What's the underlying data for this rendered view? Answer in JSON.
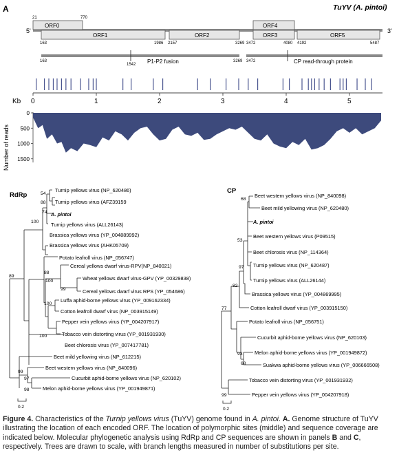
{
  "panel_a": {
    "label": "A",
    "title": "TuYV (A. pintoi)",
    "end5": "5'",
    "end3": "3'",
    "orfs": [
      {
        "name": "ORF0",
        "start": "21",
        "end": "770"
      },
      {
        "name": "ORF1",
        "start": "163",
        "end": "1986"
      },
      {
        "name": "ORF2",
        "start": "2157",
        "end": "3269"
      },
      {
        "name": "ORF4",
        "start": "",
        "end": ""
      },
      {
        "name": "ORF3",
        "start": "3472",
        "end": "4080"
      },
      {
        "name": "ORF5",
        "start": "4192",
        "end": "5487"
      }
    ],
    "fusions": [
      {
        "label": "P1-P2 fusion",
        "start": "163",
        "mid": "1542",
        "end": "3269"
      },
      {
        "label": "CP read-through protein",
        "start": "3472",
        "mid": "",
        "end": ""
      }
    ],
    "kb_label": "Kb",
    "kb_ticks": [
      "0",
      "1",
      "2",
      "3",
      "4",
      "5"
    ],
    "polymorphic_sites_kb": [
      0.05,
      0.18,
      0.25,
      0.32,
      0.38,
      0.45,
      0.52,
      0.6,
      0.75,
      0.88,
      0.95,
      1.0,
      1.42,
      1.55,
      1.9,
      2.05,
      2.6,
      2.8,
      3.05,
      3.25,
      3.4,
      3.55,
      3.95,
      4.05,
      4.25,
      4.35,
      4.4,
      4.45,
      4.52,
      4.6,
      4.7,
      4.85,
      4.9,
      4.95,
      5.12,
      5.25,
      5.35
    ],
    "coverage_ylabel": "Number of reads",
    "coverage_ticks": [
      "0",
      "500",
      "1000",
      "1500"
    ],
    "coverage_depth": [
      [
        0,
        150
      ],
      [
        0.08,
        500
      ],
      [
        0.15,
        400
      ],
      [
        0.22,
        850
      ],
      [
        0.3,
        700
      ],
      [
        0.38,
        1000
      ],
      [
        0.45,
        950
      ],
      [
        0.52,
        1300
      ],
      [
        0.6,
        1150
      ],
      [
        0.7,
        1250
      ],
      [
        0.8,
        1000
      ],
      [
        0.9,
        1050
      ],
      [
        1.0,
        1120
      ],
      [
        1.1,
        800
      ],
      [
        1.2,
        900
      ],
      [
        1.3,
        600
      ],
      [
        1.4,
        700
      ],
      [
        1.5,
        900
      ],
      [
        1.6,
        650
      ],
      [
        1.7,
        500
      ],
      [
        1.8,
        450
      ],
      [
        1.9,
        700
      ],
      [
        2.0,
        900
      ],
      [
        2.1,
        850
      ],
      [
        2.2,
        550
      ],
      [
        2.3,
        450
      ],
      [
        2.4,
        700
      ],
      [
        2.5,
        750
      ],
      [
        2.6,
        650
      ],
      [
        2.7,
        880
      ],
      [
        2.8,
        850
      ],
      [
        2.9,
        700
      ],
      [
        3.0,
        600
      ],
      [
        3.1,
        500
      ],
      [
        3.2,
        550
      ],
      [
        3.3,
        450
      ],
      [
        3.4,
        650
      ],
      [
        3.5,
        850
      ],
      [
        3.6,
        900
      ],
      [
        3.7,
        700
      ],
      [
        3.8,
        1000
      ],
      [
        3.9,
        1100
      ],
      [
        4.0,
        1150
      ],
      [
        4.1,
        950
      ],
      [
        4.2,
        1050
      ],
      [
        4.3,
        850
      ],
      [
        4.4,
        1200
      ],
      [
        4.5,
        1150
      ],
      [
        4.6,
        1050
      ],
      [
        4.7,
        850
      ],
      [
        4.8,
        600
      ],
      [
        4.9,
        500
      ],
      [
        5.0,
        650
      ],
      [
        5.1,
        500
      ],
      [
        5.2,
        700
      ],
      [
        5.3,
        600
      ],
      [
        5.4,
        500
      ],
      [
        5.5,
        250
      ]
    ]
  },
  "rdrp_tree": {
    "title": "RdRp",
    "scale": "0.2",
    "taxa": [
      "Turnip yellows virus (NP_620486)",
      "Turnip yellows virus (AFZ39159",
      "A. pintoi",
      "Turnip yellows virus (ALL26143)",
      "Brassica yellows virus (YP_004889992)",
      "Brassica yellows virus (AHK05709)",
      "Potato leafroll virus (NP_056747)",
      "Cereal yellows dwarf virus-RPV(NP_840021)",
      "Wheat yellows dwarf virus-GPV (YP_00329838)",
      "Cereal yellows dwarf virus RPS (YP_054686)",
      "Luffa aphid-borne yellows virus (YP_009162334)",
      "Cotton leafroll dwarf virus (NP_003915149)",
      "Pepper vein yellows virus (YP_004207917)",
      "Tobacco vein distorting virus (YP_001931930)",
      "Beet chlorosis virus (YP_007417781)",
      "Beet mild yellowing virus (NP_612215)",
      "Beet western yellows virus (NP_840096)",
      "Cucurbit aphid-borne yellows virus (NP_620102)",
      "Melon aphid-borne yellows virus (YP_001949871)"
    ],
    "bootstraps": [
      "54",
      "88",
      "74",
      "100",
      "88",
      "89",
      "100",
      "99",
      "100",
      "100",
      "99",
      "97",
      "98"
    ]
  },
  "cp_tree": {
    "title": "CP",
    "scale": "0.2",
    "taxa": [
      "Beet western yellows virus (NP_840098)",
      "Beet mild yellowing virus (NP_620480)",
      "A. pintoi",
      "Beet western yellows virus (P09515)",
      "Beet chlorosis virus (NP_114364)",
      "Turnip yellows virus (NP_620487)",
      "Turnip yellows virus (ALL26144)",
      "Brassica yellows virus (YP_004869995)",
      "Cotton leafroll dwarf virus (YP_003915150)",
      "Potato leafroll virus (NP_056751)",
      "Cucurbit aphid-borne yellows virus (NP_620103)",
      "Melon aphid-borne yellows virus (YP_001949872)",
      "Suakwa aphid-borne yellows virus (YP_006666508)",
      "Tobacco vein distorting virus (YP_001931932)",
      "Pepper vein yellows virus (YP_004207918)"
    ],
    "bootstraps": [
      "68",
      "53",
      "97",
      "82",
      "77",
      "93",
      "68",
      "99"
    ]
  },
  "caption": {
    "fig": "Figure 4.",
    "t1": " Characteristics of the ",
    "i1": "Turnip yellows virus",
    "t2": " (TuYV) genome found in ",
    "i2": "A. pintoi",
    "t3": ". ",
    "bA": "A.",
    "t4": " Genome structure of TuYV illustrating the location of  each encoded ORF. The location of polymorphic sites (middle) and sequence coverage are indicated below. Molecular phylogenetic analysis  using RdRp and CP sequences are shown in panels ",
    "bB": "B",
    "t5": " and ",
    "bC": "C",
    "t6": ", respectively. Trees are drawn to scale, with branch lengths measured in number of substitutions per site."
  }
}
